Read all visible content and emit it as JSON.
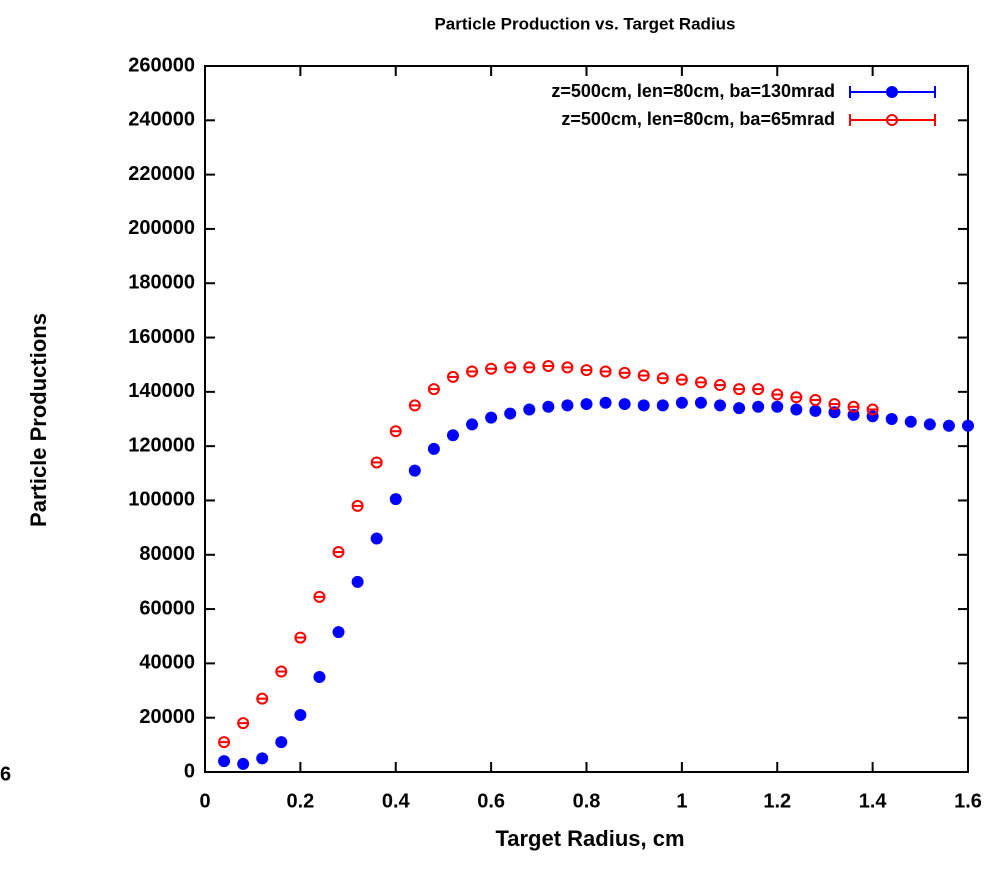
{
  "chart_data": {
    "type": "scatter",
    "title": "Particle Production vs. Target Radius",
    "xlabel": "Target Radius, cm",
    "ylabel": "Particle Productions",
    "stray_label": "6",
    "xlim": [
      0,
      1.6
    ],
    "xticks": [
      0,
      0.2,
      0.4,
      0.6,
      0.8,
      1,
      1.2,
      1.4,
      1.6
    ],
    "ylim": [
      0,
      260000
    ],
    "yticks": [
      0,
      20000,
      40000,
      60000,
      80000,
      100000,
      120000,
      140000,
      160000,
      180000,
      200000,
      220000,
      240000,
      260000
    ],
    "legend": "top-right",
    "series": [
      {
        "name": "z=500cm, len=80cm, ba=130mrad",
        "color": "#0000ff",
        "marker": "filled",
        "x": [
          0.04,
          0.08,
          0.12,
          0.16,
          0.2,
          0.24,
          0.28,
          0.32,
          0.36,
          0.4,
          0.44,
          0.48,
          0.52,
          0.56,
          0.6,
          0.64,
          0.68,
          0.72,
          0.76,
          0.8,
          0.84,
          0.88,
          0.92,
          0.96,
          1,
          1.04,
          1.08,
          1.12,
          1.16,
          1.2,
          1.24,
          1.28,
          1.32,
          1.36,
          1.4,
          1.44,
          1.48,
          1.52,
          1.56,
          1.6
        ],
        "values": [
          4000,
          3000,
          5000,
          11000,
          21000,
          35000,
          51500,
          70000,
          86000,
          100500,
          111000,
          119000,
          124000,
          128000,
          130500,
          132000,
          133500,
          134500,
          135000,
          135500,
          136000,
          135500,
          135000,
          135000,
          136000,
          136000,
          135000,
          134000,
          134500,
          134500,
          133500,
          133000,
          132500,
          131500,
          131000,
          130000,
          129000,
          128000,
          127500,
          127500
        ]
      },
      {
        "name": "z=500cm, len=80cm, ba=65mrad",
        "color": "#ff0000",
        "marker": "open",
        "x": [
          0.04,
          0.08,
          0.12,
          0.16,
          0.2,
          0.24,
          0.28,
          0.32,
          0.36,
          0.4,
          0.44,
          0.48,
          0.52,
          0.56,
          0.6,
          0.64,
          0.68,
          0.72,
          0.76,
          0.8,
          0.84,
          0.88,
          0.92,
          0.96,
          1,
          1.04,
          1.08,
          1.12,
          1.16,
          1.2,
          1.24,
          1.28,
          1.32,
          1.36,
          1.4
        ],
        "values": [
          11000,
          18000,
          27000,
          37000,
          49500,
          64500,
          81000,
          98000,
          114000,
          125500,
          135000,
          141000,
          145500,
          147500,
          148500,
          149000,
          149000,
          149500,
          149000,
          148000,
          147500,
          147000,
          146000,
          145000,
          144500,
          143500,
          142500,
          141000,
          141000,
          139000,
          138000,
          137000,
          135500,
          134500,
          133500
        ]
      }
    ]
  }
}
